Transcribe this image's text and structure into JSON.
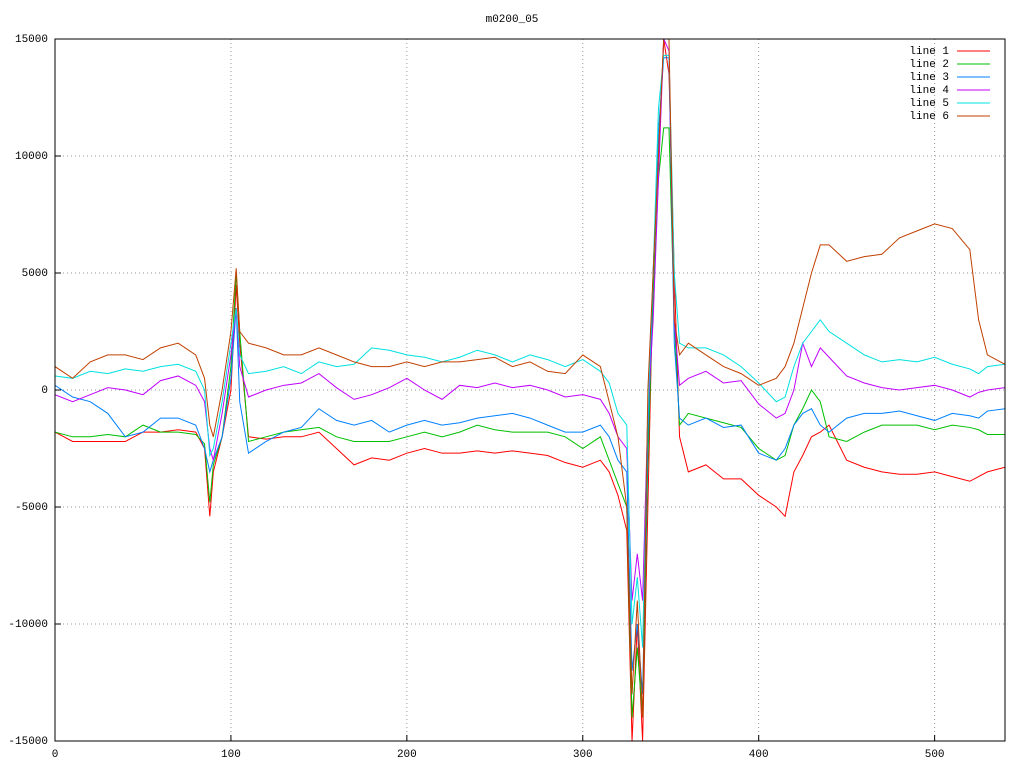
{
  "chart_data": {
    "type": "line",
    "title": "m0200_05",
    "x": [
      0,
      10,
      20,
      30,
      40,
      50,
      60,
      70,
      80,
      85,
      88,
      90,
      95,
      100,
      103,
      105,
      110,
      120,
      130,
      140,
      150,
      160,
      170,
      180,
      190,
      200,
      210,
      220,
      230,
      240,
      250,
      260,
      270,
      280,
      290,
      300,
      310,
      315,
      320,
      325,
      328,
      331,
      334,
      337,
      340,
      343,
      346,
      349,
      352,
      355,
      360,
      370,
      380,
      390,
      400,
      410,
      415,
      420,
      425,
      430,
      435,
      440,
      450,
      460,
      470,
      480,
      490,
      500,
      510,
      520,
      525,
      530,
      540
    ],
    "xlim": [
      0,
      540
    ],
    "xticks": [
      0,
      100,
      200,
      300,
      400,
      500
    ],
    "ylim": [
      -15000,
      15000
    ],
    "yticks": [
      -15000,
      -10000,
      -5000,
      0,
      5000,
      10000,
      15000
    ],
    "grid": true,
    "legend": "top-right",
    "series": [
      {
        "name": "line 1",
        "color": "#ff0000",
        "values": [
          -1800,
          -2200,
          -2200,
          -2200,
          -2200,
          -1800,
          -1800,
          -1700,
          -1800,
          -2500,
          -5400,
          -3500,
          -2000,
          0,
          4500,
          2000,
          -2000,
          -2100,
          -2000,
          -2000,
          -1800,
          -2500,
          -3200,
          -2900,
          -3000,
          -2700,
          -2500,
          -2700,
          -2700,
          -2600,
          -2700,
          -2600,
          -2700,
          -2800,
          -3100,
          -3300,
          -3000,
          -3500,
          -4500,
          -6000,
          -15000,
          -10000,
          -15000,
          -5000,
          5000,
          10000,
          15000,
          13500,
          5000,
          -2000,
          -3500,
          -3200,
          -3800,
          -3800,
          -4500,
          -5000,
          -5400,
          -3500,
          -2800,
          -2000,
          -1800,
          -1500,
          -3000,
          -3300,
          -3500,
          -3600,
          -3600,
          -3500,
          -3700,
          -3900,
          -3700,
          -3500,
          -3300
        ]
      },
      {
        "name": "line 2",
        "color": "#00c000",
        "values": [
          -1800,
          -2000,
          -2000,
          -1900,
          -2000,
          -1500,
          -1800,
          -1800,
          -1900,
          -2300,
          -4800,
          -3200,
          -2000,
          1000,
          5000,
          2500,
          -2200,
          -2000,
          -1800,
          -1700,
          -1600,
          -2000,
          -2200,
          -2200,
          -2200,
          -2000,
          -1800,
          -2000,
          -1800,
          -1500,
          -1700,
          -1800,
          -1800,
          -1800,
          -2000,
          -2500,
          -2000,
          -3000,
          -4000,
          -5000,
          -14000,
          -11000,
          -14000,
          -3000,
          4000,
          9000,
          11200,
          11200,
          3000,
          -1500,
          -1000,
          -1200,
          -1400,
          -1600,
          -2500,
          -3000,
          -2800,
          -1500,
          -800,
          0,
          -500,
          -2000,
          -2200,
          -1800,
          -1500,
          -1500,
          -1500,
          -1700,
          -1500,
          -1600,
          -1700,
          -1900,
          -1900
        ]
      },
      {
        "name": "line 3",
        "color": "#0080ff",
        "values": [
          200,
          -300,
          -500,
          -1000,
          -2000,
          -1800,
          -1200,
          -1200,
          -1500,
          -2500,
          -3500,
          -3000,
          -2000,
          500,
          3500,
          -500,
          -2700,
          -2200,
          -1800,
          -1600,
          -800,
          -1300,
          -1500,
          -1300,
          -1800,
          -1500,
          -1300,
          -1500,
          -1400,
          -1200,
          -1100,
          -1000,
          -1200,
          -1500,
          -1800,
          -1800,
          -1500,
          -2000,
          -3000,
          -3500,
          -12000,
          -10000,
          -13000,
          -2000,
          5000,
          11000,
          14200,
          14200,
          2000,
          -1200,
          -1500,
          -1200,
          -1600,
          -1500,
          -2700,
          -3000,
          -2500,
          -1500,
          -1000,
          -800,
          -1500,
          -1800,
          -1200,
          -1000,
          -1000,
          -900,
          -1100,
          -1300,
          -1000,
          -1100,
          -1200,
          -900,
          -800
        ]
      },
      {
        "name": "line 4",
        "color": "#c000ff",
        "values": [
          -200,
          -500,
          -200,
          100,
          0,
          -200,
          400,
          600,
          200,
          -500,
          -2500,
          -3000,
          -1000,
          1500,
          3500,
          1000,
          -300,
          0,
          200,
          300,
          700,
          100,
          -400,
          -200,
          100,
          500,
          0,
          -400,
          200,
          100,
          300,
          100,
          200,
          0,
          -300,
          -200,
          -400,
          -1000,
          -2000,
          -2500,
          -9000,
          -7000,
          -9000,
          -1000,
          3000,
          9000,
          15000,
          14500,
          3000,
          200,
          500,
          800,
          300,
          400,
          -600,
          -1200,
          -1000,
          0,
          2000,
          1000,
          1800,
          1400,
          600,
          300,
          100,
          0,
          100,
          200,
          0,
          -300,
          -100,
          0,
          100
        ]
      },
      {
        "name": "line 5",
        "color": "#00e0e0",
        "values": [
          600,
          500,
          800,
          700,
          900,
          800,
          1000,
          1100,
          800,
          0,
          -2800,
          -2500,
          -500,
          2000,
          3500,
          1500,
          700,
          800,
          1000,
          700,
          1200,
          1000,
          1100,
          1800,
          1700,
          1500,
          1400,
          1200,
          1400,
          1700,
          1500,
          1200,
          1500,
          1300,
          1000,
          1300,
          800,
          300,
          -1000,
          -1500,
          -10000,
          -8000,
          -11000,
          -1000,
          5000,
          12000,
          14300,
          14300,
          5000,
          2000,
          1800,
          1800,
          1500,
          1000,
          300,
          -500,
          -300,
          1000,
          2000,
          2500,
          3000,
          2500,
          2000,
          1500,
          1200,
          1300,
          1200,
          1400,
          1100,
          900,
          700,
          1000,
          1100
        ]
      },
      {
        "name": "line 6",
        "color": "#c04000",
        "values": [
          1000,
          500,
          1200,
          1500,
          1500,
          1300,
          1800,
          2000,
          1500,
          500,
          -1500,
          -2000,
          0,
          2500,
          5200,
          2500,
          2000,
          1800,
          1500,
          1500,
          1800,
          1500,
          1200,
          1000,
          1000,
          1200,
          1000,
          1200,
          1200,
          1300,
          1400,
          1000,
          1200,
          800,
          700,
          1500,
          1000,
          -500,
          -2000,
          -5000,
          -13000,
          -9000,
          -14000,
          0,
          5000,
          10000,
          15000,
          15000,
          3000,
          1500,
          2000,
          1500,
          1000,
          700,
          200,
          500,
          1000,
          2000,
          3500,
          5000,
          6200,
          6200,
          5500,
          5700,
          5800,
          6500,
          6800,
          7100,
          6900,
          6000,
          3000,
          1500,
          1100
        ]
      }
    ]
  }
}
